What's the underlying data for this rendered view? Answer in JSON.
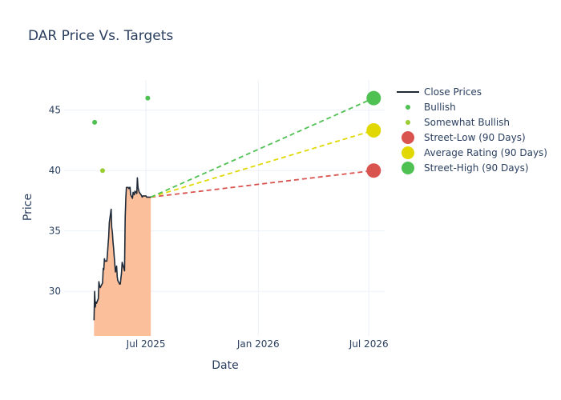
{
  "chart_data": {
    "type": "line",
    "title": "DAR Price Vs. Targets",
    "xlabel": "Date",
    "ylabel": "Price",
    "x_ticks": [
      "Jul 2025",
      "Jan 2026",
      "Jul 2026"
    ],
    "y_ticks": [
      30,
      35,
      40,
      45
    ],
    "xlim": [
      "2025-02-17",
      "2026-07-27"
    ],
    "ylim": [
      26.3,
      47.5
    ],
    "grid": true,
    "legend_position": "right",
    "series": [
      {
        "name": "Close Prices",
        "type": "line-area",
        "color": "#1f2a38",
        "fill": "#fbbf9c",
        "x": [
          "2025-04-07",
          "2025-04-08",
          "2025-04-09",
          "2025-04-10",
          "2025-04-11",
          "2025-04-14",
          "2025-04-15",
          "2025-04-16",
          "2025-04-17",
          "2025-04-21",
          "2025-04-22",
          "2025-04-23",
          "2025-04-24",
          "2025-04-25",
          "2025-04-28",
          "2025-04-29",
          "2025-04-30",
          "2025-05-01",
          "2025-05-02",
          "2025-05-05",
          "2025-05-06",
          "2025-05-07",
          "2025-05-08",
          "2025-05-09",
          "2025-05-12",
          "2025-05-13",
          "2025-05-14",
          "2025-05-15",
          "2025-05-16",
          "2025-05-19",
          "2025-05-20",
          "2025-05-21",
          "2025-05-22",
          "2025-05-23",
          "2025-05-27",
          "2025-05-28",
          "2025-05-29",
          "2025-05-30",
          "2025-06-02",
          "2025-06-03",
          "2025-06-04",
          "2025-06-05",
          "2025-06-06",
          "2025-06-09",
          "2025-06-10",
          "2025-06-11",
          "2025-06-12",
          "2025-06-13",
          "2025-06-16",
          "2025-06-17",
          "2025-06-18",
          "2025-06-20",
          "2025-06-23",
          "2025-06-24",
          "2025-06-25",
          "2025-06-26",
          "2025-06-27",
          "2025-06-30",
          "2025-07-01",
          "2025-07-02",
          "2025-07-03",
          "2025-07-07",
          "2025-07-08",
          "2025-07-09"
        ],
        "values": [
          27.6,
          30.0,
          28.7,
          29.1,
          29.0,
          29.4,
          30.8,
          30.5,
          30.3,
          30.7,
          31.9,
          31.8,
          32.7,
          32.5,
          32.5,
          33.1,
          33.9,
          34.5,
          35.7,
          36.8,
          35.3,
          34.9,
          34.1,
          33.6,
          31.6,
          31.8,
          32.1,
          31.2,
          30.9,
          30.6,
          30.6,
          31.1,
          31.5,
          32.4,
          31.7,
          36.1,
          37.7,
          38.6,
          38.6,
          38.5,
          38.6,
          38.6,
          38.0,
          37.7,
          38.2,
          38.1,
          38.0,
          38.3,
          38.1,
          39.4,
          38.6,
          38.2,
          38.0,
          37.9,
          37.8,
          37.9,
          37.9,
          37.9,
          37.9,
          37.8,
          37.8,
          37.8,
          37.8,
          37.8
        ]
      },
      {
        "name": "Bullish",
        "type": "markers",
        "color": "#4fc153",
        "x": [
          "2025-04-08",
          "2025-07-04"
        ],
        "values": [
          44,
          46
        ]
      },
      {
        "name": "Somewhat Bullish",
        "type": "markers",
        "color": "#9acd32",
        "x": [
          "2025-04-21"
        ],
        "values": [
          40
        ]
      },
      {
        "name": "Street-Low (90 Days)",
        "type": "target",
        "color": "#d9534f",
        "x": [
          "2025-07-09",
          "2026-07-09"
        ],
        "values": [
          37.8,
          40
        ]
      },
      {
        "name": "Average Rating (90 Days)",
        "type": "target",
        "color": "#e0d800",
        "x": [
          "2025-07-09",
          "2026-07-09"
        ],
        "values": [
          37.8,
          43.33
        ]
      },
      {
        "name": "Street-High (90 Days)",
        "type": "target",
        "color": "#4fc153",
        "x": [
          "2025-07-09",
          "2026-07-09"
        ],
        "values": [
          37.8,
          46
        ]
      }
    ]
  }
}
